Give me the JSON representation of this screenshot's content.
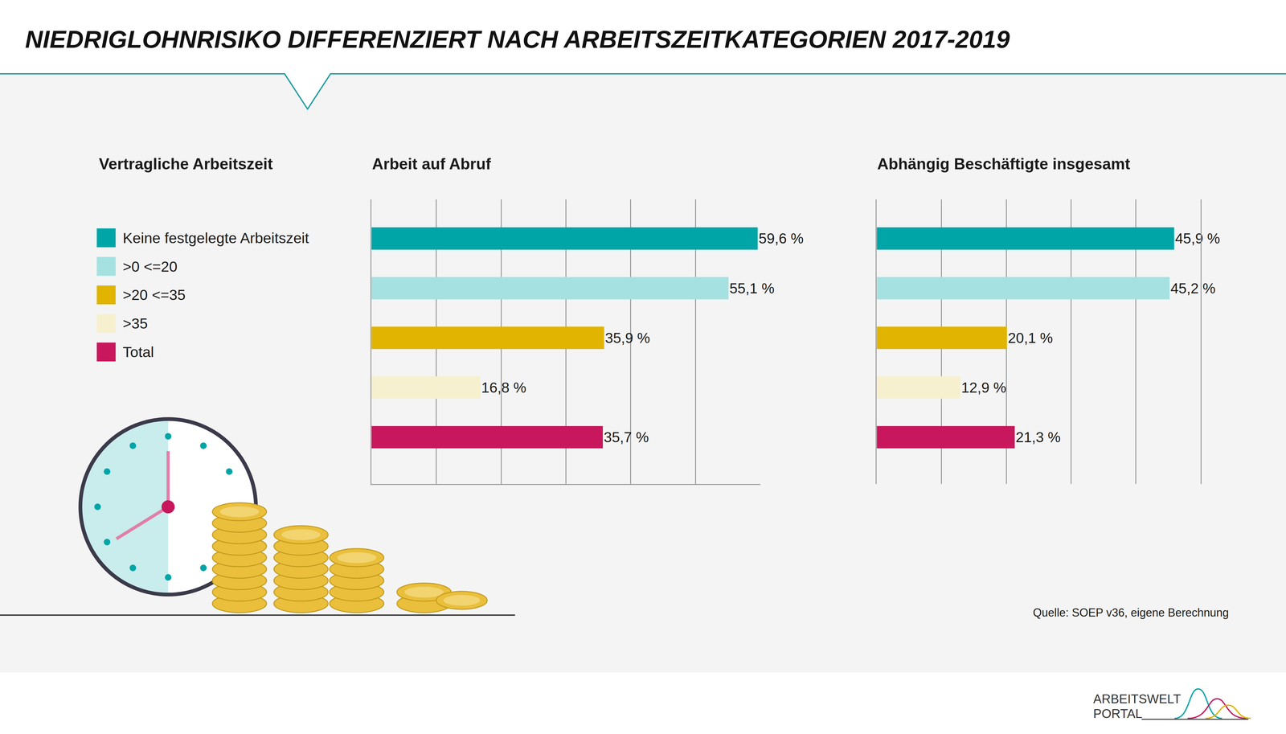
{
  "title": "NIEDRIGLOHNRISIKO DIFFERENZIERT NACH ARBEITSZEITKATEGORIEN 2017-2019",
  "legend_title": "Vertragliche Arbeitszeit",
  "source": "Quelle: SOEP v36, eigene Berechnung",
  "logo": [
    "ARBEITSWELT",
    "PORTAL"
  ],
  "chart_data": [
    {
      "type": "bar",
      "title": "Arbeit auf Abruf",
      "orientation": "horizontal",
      "categories": [
        "Keine festgelegte Arbeitszeit",
        ">0 <=20",
        ">20 <=35",
        ">35",
        "Total"
      ],
      "colors": [
        "#00a5a8",
        "#a6e1e1",
        "#e0b400",
        "#f7f0cf",
        "#c8175c"
      ],
      "values": [
        59.6,
        55.1,
        35.9,
        16.8,
        35.7
      ],
      "value_labels": [
        "59,6 %",
        "55,1 %",
        "35,9 %",
        "16,8 %",
        "35,7 %"
      ],
      "data_labels": true,
      "xlim": [
        0,
        60
      ],
      "xticks": [
        0,
        10,
        20,
        30,
        40,
        50
      ],
      "grid": true,
      "tick_labels": false
    },
    {
      "type": "bar",
      "title": "Abhängig Beschäftigte insgesamt",
      "orientation": "horizontal",
      "categories": [
        "Keine festgelegte Arbeitszeit",
        ">0 <=20",
        ">20 <=35",
        ">35",
        "Total"
      ],
      "colors": [
        "#00a5a8",
        "#a6e1e1",
        "#e0b400",
        "#f7f0cf",
        "#c8175c"
      ],
      "values": [
        45.9,
        45.2,
        20.1,
        12.9,
        21.3
      ],
      "value_labels": [
        "45,9 %",
        "45,2 %",
        "20,1 %",
        "12,9 %",
        "21,3 %"
      ],
      "data_labels": true,
      "xlim": [
        0,
        50
      ],
      "xticks": [
        0,
        10,
        20,
        30,
        40,
        50
      ],
      "grid": true,
      "tick_labels": false
    }
  ]
}
